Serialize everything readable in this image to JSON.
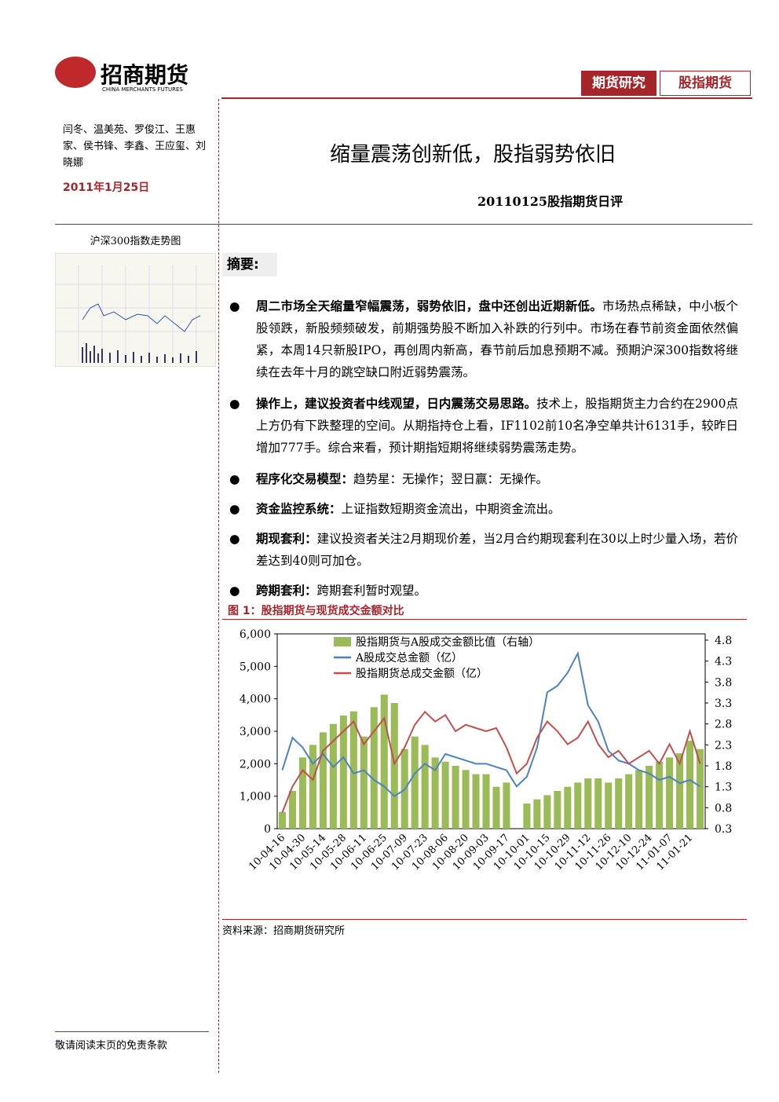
{
  "header": {
    "logo_cn": "招商期货",
    "logo_en": "CHINA MERCHANTS FUTURES",
    "tags": [
      "期货研究",
      "股指期货"
    ]
  },
  "sidebar": {
    "authors": "闫冬、温美苑、罗俊江、王惠家、侯书锋、李鑫、王应玺、刘晓娜",
    "date": "2011年1月25日",
    "thumb_title": "沪深300指数走势图"
  },
  "title": "缩量震荡创新低，股指弱势依旧",
  "subtitle": "20110125股指期货日评",
  "summary_heading": "摘要:",
  "bullets": [
    {
      "bold": "周二市场全天缩量窄幅震荡，弱势依旧，盘中还创出近期新低。",
      "text": "市场热点稀缺，中小板个股领跌，新股频频破发，前期强势股不断加入补跌的行列中。市场在春节前资金面依然偏紧，本周14只新股IPO，再创周内新高，春节前后加息预期不减。预期沪深300指数将继续在去年十月的跳空缺口附近弱势震荡。"
    },
    {
      "bold": "操作上，建议投资者中线观望，日内震荡交易思路。",
      "text": "技术上，股指期货主力合约在2900点上方仍有下跌整理的空间。从期指持仓上看，IF1102前10名净空单共计6131手，较昨日增加777手。综合来看，预计期指短期将继续弱势震荡走势。"
    },
    {
      "bold": "程序化交易模型：",
      "text": "趋势星：无操作；翌日赢：无操作。"
    },
    {
      "bold": "资金监控系统：",
      "text": "上证指数短期资金流出，中期资金流出。"
    },
    {
      "bold": "期现套利：",
      "text": "建议投资者关注2月期现价差，当2月合约期现套利在30以上时少量入场，若价差达到40则可加仓。"
    },
    {
      "bold": "跨期套利：",
      "text": "跨期套利暂时观望。"
    }
  ],
  "figure_title": "图 1：股指期货与现货成交金额对比",
  "chart_data": {
    "type": "combo",
    "categories": [
      "10-04-16",
      null,
      "10-04-30",
      null,
      "10-05-14",
      null,
      "10-05-28",
      null,
      "10-06-11",
      null,
      "10-06-25",
      null,
      "10-07-09",
      null,
      "10-07-23",
      null,
      "10-08-06",
      null,
      "10-08-20",
      null,
      "10-09-03",
      null,
      "10-09-17",
      null,
      "10-10-01",
      null,
      "10-10-15",
      null,
      "10-10-29",
      null,
      "10-11-12",
      null,
      "10-11-26",
      null,
      "10-12-10",
      null,
      "10-12-24",
      null,
      "11-01-07",
      null,
      "11-01-21",
      null
    ],
    "series": [
      {
        "name": "股指期货与A股成交金额比值（右轴）",
        "type": "bar",
        "axis": "y2",
        "color": "#9bbb59",
        "values": [
          0.7,
          1.2,
          2.0,
          2.3,
          2.6,
          2.8,
          3.0,
          3.1,
          2.5,
          3.2,
          3.5,
          3.3,
          2.2,
          2.5,
          2.3,
          2.0,
          1.9,
          1.8,
          1.7,
          1.6,
          1.6,
          1.3,
          1.4,
          null,
          0.9,
          1.0,
          1.1,
          1.2,
          1.3,
          1.4,
          1.5,
          1.5,
          1.4,
          1.5,
          1.6,
          1.7,
          1.8,
          1.9,
          2.0,
          2.1,
          2.4,
          2.2
        ]
      },
      {
        "name": "A股成交总金额（亿）",
        "type": "line",
        "color": "#4f81bd",
        "values": [
          1800,
          2800,
          2500,
          2000,
          2300,
          1900,
          2200,
          1700,
          1800,
          1500,
          1300,
          1000,
          1200,
          1700,
          2000,
          1800,
          2300,
          2200,
          2100,
          2000,
          2000,
          1900,
          1800,
          1300,
          1600,
          2500,
          4200,
          4400,
          4800,
          5400,
          3800,
          3300,
          2400,
          2100,
          2000,
          1800,
          1700,
          1500,
          1600,
          1400,
          1500,
          1300
        ]
      },
      {
        "name": "股指期货总成交金额（亿）",
        "type": "line",
        "color": "#c0504d",
        "values": [
          500,
          1300,
          1800,
          1500,
          2400,
          2700,
          3000,
          3300,
          2600,
          3000,
          3400,
          2000,
          2500,
          3200,
          3600,
          3300,
          3500,
          3000,
          3200,
          3100,
          3000,
          3100,
          2500,
          1700,
          2000,
          2800,
          3300,
          3000,
          2600,
          2800,
          3300,
          2600,
          2200,
          2400,
          2000,
          2200,
          2400,
          2000,
          2600,
          2000,
          3000,
          2000
        ]
      }
    ],
    "ylim": [
      0,
      6000
    ],
    "yticks": [
      0,
      {
        "value": 1000,
        "label": "1,000"
      },
      {
        "value": 2000,
        "label": "2,000"
      },
      {
        "value": 3000,
        "label": "3,000"
      },
      {
        "value": 4000,
        "label": "4,000"
      },
      {
        "value": 5000,
        "label": "5,000"
      },
      {
        "value": 6000,
        "label": "6,000"
      }
    ],
    "y2lim": [
      0.3,
      4.95
    ],
    "y2ticks": [
      0.3,
      0.8,
      1.3,
      1.8,
      2.3,
      2.8,
      3.3,
      3.8,
      4.3,
      4.8
    ],
    "legend": "upper left"
  },
  "source": "资料来源：招商期货研究所",
  "footer": "敬请阅读末页的免责条款"
}
